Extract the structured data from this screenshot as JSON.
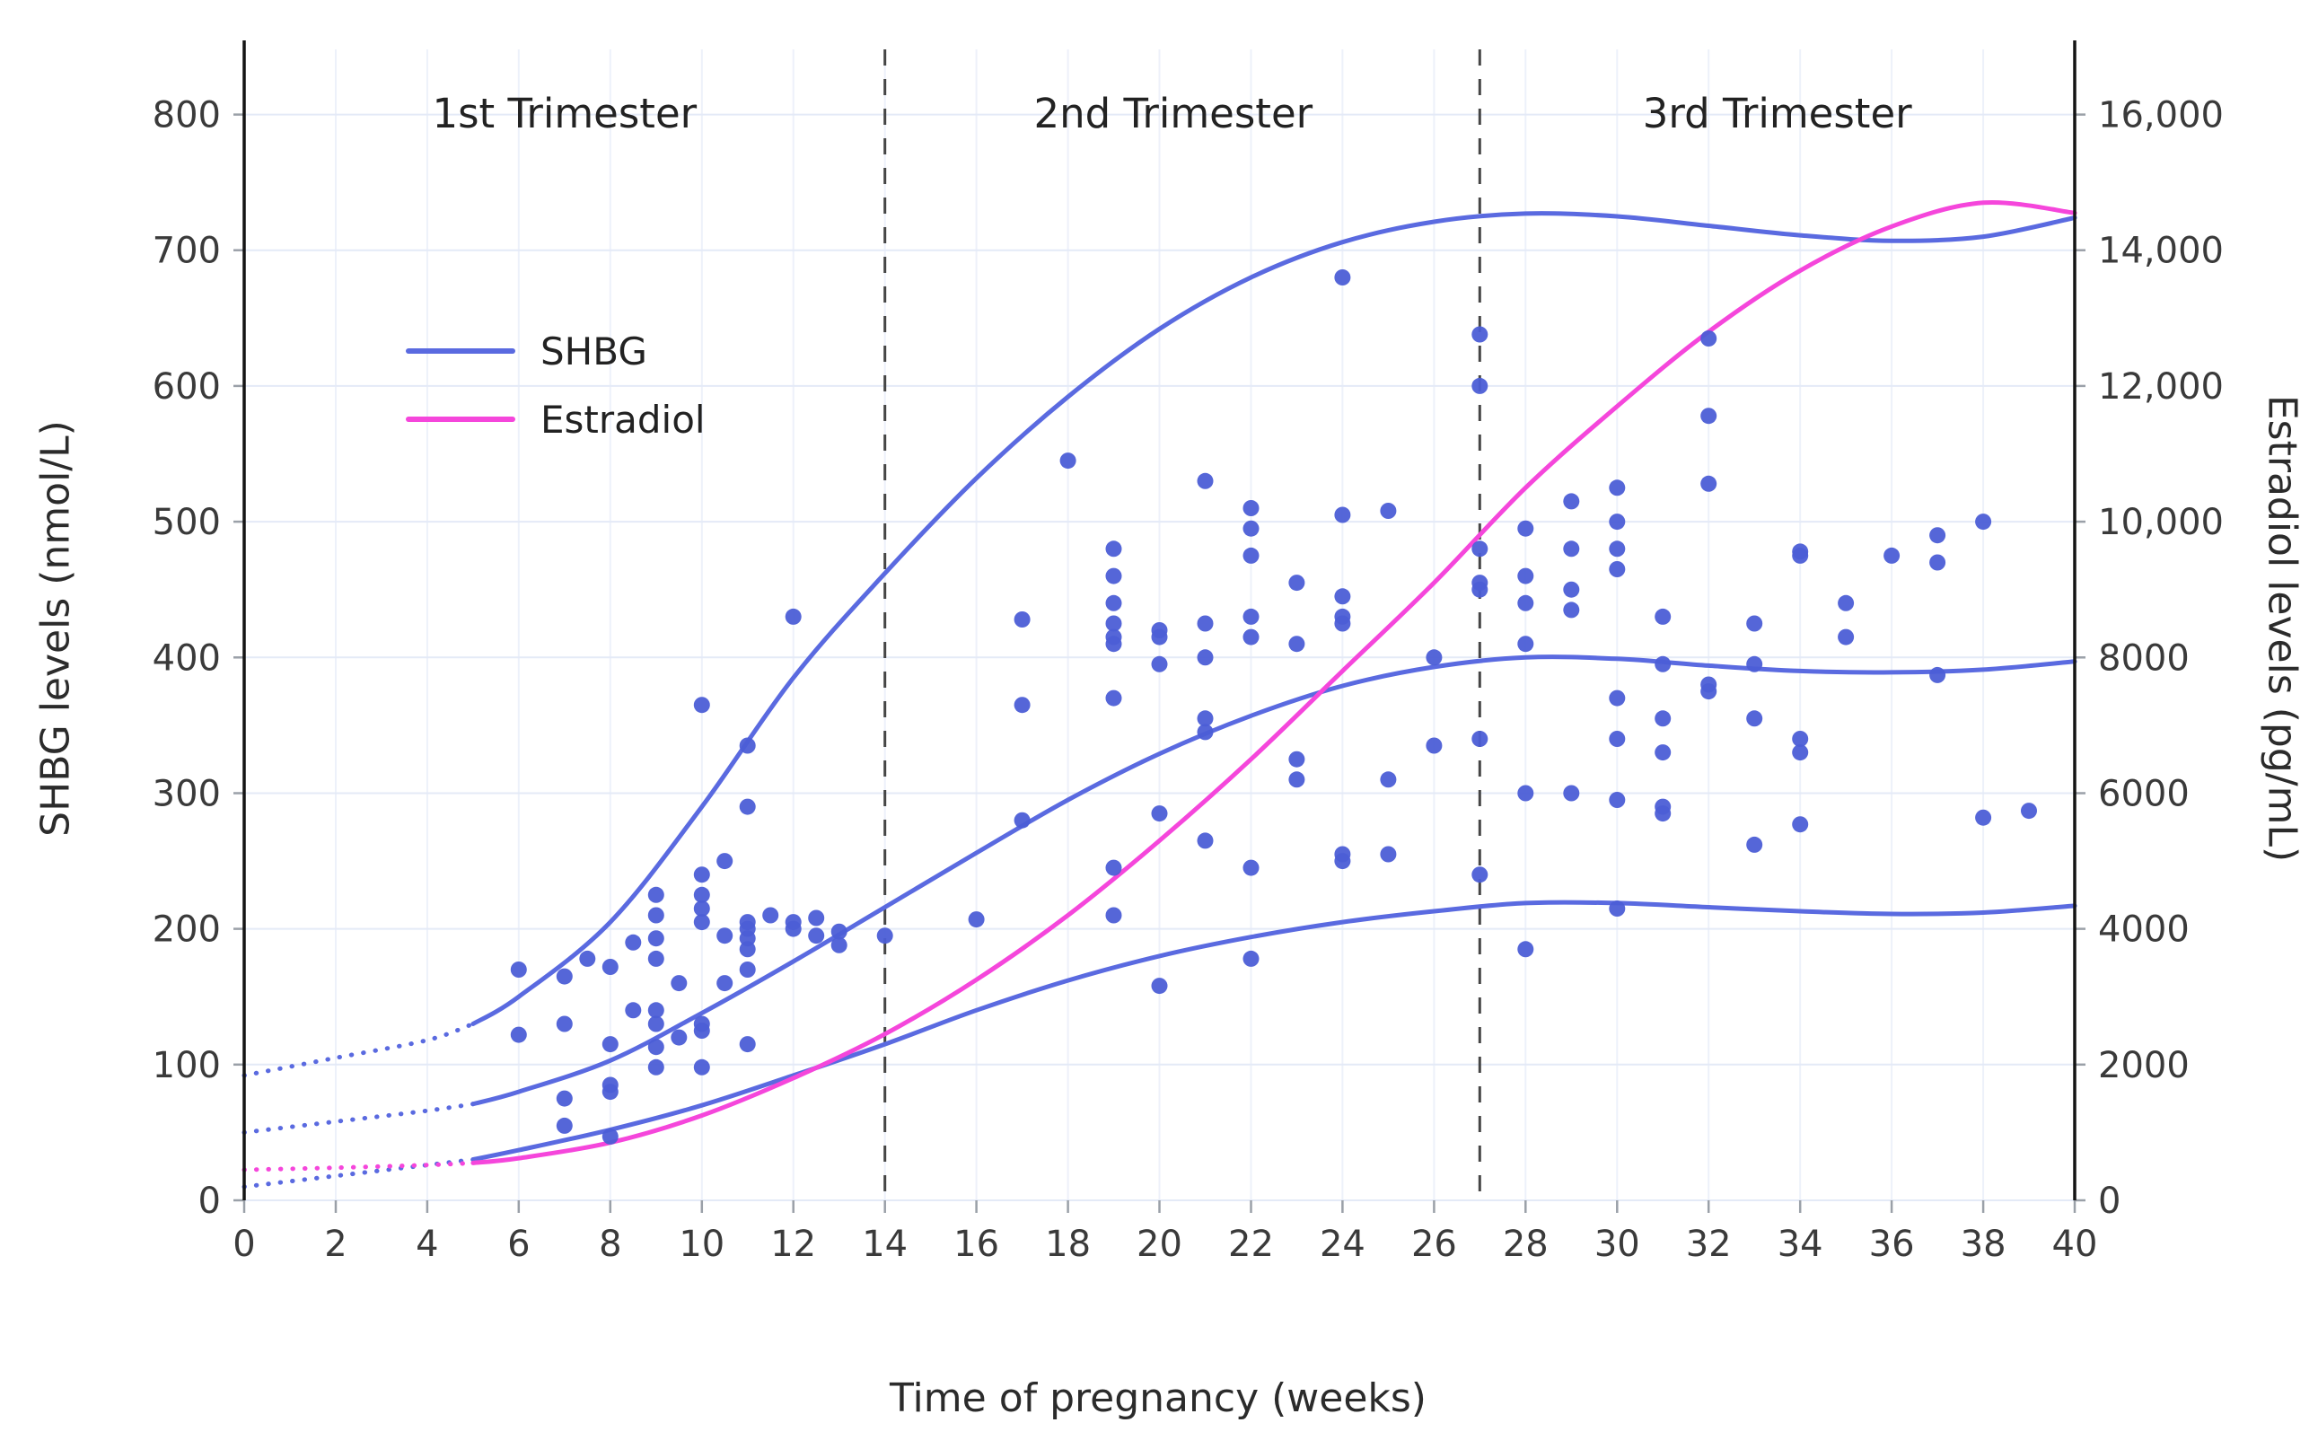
{
  "chart_data": {
    "type": "scatter",
    "title": "",
    "xlabel": "Time of pregnancy (weeks)",
    "ylabel_left": "SHBG levels (nmol/L)",
    "ylabel_right": "Estradiol levels (pg/mL)",
    "x_range": [
      0,
      40
    ],
    "left_range": [
      0,
      848
    ],
    "right_range": [
      0,
      16960
    ],
    "x_ticks": [
      0,
      2,
      4,
      6,
      8,
      10,
      12,
      14,
      16,
      18,
      20,
      22,
      24,
      26,
      28,
      30,
      32,
      34,
      36,
      38,
      40
    ],
    "left_ticks": [
      0,
      100,
      200,
      300,
      400,
      500,
      600,
      700,
      800
    ],
    "left_tick_labels": [
      "0",
      "100",
      "200",
      "300",
      "400",
      "500",
      "600",
      "700",
      "800"
    ],
    "right_ticks": [
      0,
      2000,
      4000,
      6000,
      8000,
      10000,
      12000,
      14000,
      16000
    ],
    "right_tick_labels": [
      "0",
      "2000",
      "4000",
      "6000",
      "8000",
      "10,000",
      "12,000",
      "14,000",
      "16,000"
    ],
    "grid": true,
    "trimester_dividers": [
      14,
      27
    ],
    "annotations": [
      "1st Trimester",
      "2nd Trimester",
      "3rd Trimester"
    ],
    "annotation_x": [
      7,
      20.3,
      33.5
    ],
    "legend": [
      {
        "label": "SHBG",
        "color": "#5A6AE0"
      },
      {
        "label": "Estradiol",
        "color": "#F546DB"
      }
    ],
    "colors": {
      "shbg_line": "#5A6AE0",
      "shbg_dot": "#4C5ED6",
      "estradiol_line": "#F546DB",
      "grid_h": "#E4EAF7",
      "grid_v": "#EDF1FA",
      "divider": "#454545",
      "edge": "#141414",
      "tick": "#9AA0A8",
      "tick_text": "#3A3A3A"
    },
    "series": [
      {
        "name": "SHBG upper curve",
        "axis": "left",
        "color": "#5A6AE0",
        "dashed_until": 5,
        "x": [
          0,
          2,
          4,
          5,
          6,
          8,
          10,
          12,
          14,
          16,
          18,
          20,
          22,
          24,
          26,
          28,
          30,
          32,
          34,
          36,
          38,
          40
        ],
        "y": [
          92,
          105,
          118,
          130,
          150,
          205,
          290,
          385,
          462,
          532,
          592,
          642,
          680,
          706,
          721,
          727,
          725,
          718,
          711,
          707,
          710,
          724
        ]
      },
      {
        "name": "SHBG median curve",
        "axis": "left",
        "color": "#5A6AE0",
        "dashed_until": 5,
        "x": [
          0,
          2,
          4,
          5,
          6,
          8,
          10,
          12,
          14,
          16,
          18,
          20,
          22,
          24,
          26,
          28,
          30,
          32,
          34,
          36,
          38,
          40
        ],
        "y": [
          50,
          58,
          66,
          71,
          80,
          103,
          138,
          176,
          216,
          256,
          295,
          329,
          357,
          379,
          393,
          400,
          399,
          394,
          390,
          389,
          391,
          397
        ]
      },
      {
        "name": "SHBG lower curve",
        "axis": "left",
        "color": "#5A6AE0",
        "dashed_until": 5,
        "x": [
          0,
          2,
          4,
          5,
          6,
          8,
          10,
          12,
          14,
          16,
          18,
          20,
          22,
          24,
          26,
          28,
          30,
          32,
          34,
          36,
          38,
          40
        ],
        "y": [
          10,
          18,
          26,
          30,
          37,
          52,
          70,
          92,
          115,
          140,
          162,
          180,
          194,
          205,
          213,
          219,
          219,
          216,
          213,
          211,
          212,
          217
        ]
      },
      {
        "name": "Estradiol curve",
        "axis": "right",
        "color": "#F546DB",
        "dashed_until": 5,
        "x": [
          0,
          2,
          4,
          5,
          6,
          8,
          10,
          12,
          14,
          16,
          18,
          20,
          22,
          24,
          26,
          28,
          30,
          32,
          34,
          36,
          38,
          40
        ],
        "y": [
          450,
          480,
          520,
          550,
          620,
          850,
          1250,
          1800,
          2450,
          3250,
          4200,
          5300,
          6500,
          7800,
          9100,
          10500,
          11700,
          12800,
          13700,
          14350,
          14700,
          14550
        ]
      }
    ],
    "scatter": {
      "name": "SHBG observations",
      "axis": "left",
      "color": "#4C5ED6",
      "points": [
        [
          6,
          170
        ],
        [
          6,
          122
        ],
        [
          7,
          165
        ],
        [
          7,
          130
        ],
        [
          7,
          75
        ],
        [
          7,
          55
        ],
        [
          7.5,
          178
        ],
        [
          8,
          172
        ],
        [
          8,
          115
        ],
        [
          8,
          85
        ],
        [
          8,
          80
        ],
        [
          8,
          47
        ],
        [
          8.5,
          190
        ],
        [
          8.5,
          140
        ],
        [
          9,
          225
        ],
        [
          9,
          210
        ],
        [
          9,
          193
        ],
        [
          9,
          178
        ],
        [
          9,
          140
        ],
        [
          9,
          130
        ],
        [
          9,
          113
        ],
        [
          9,
          98
        ],
        [
          9.5,
          160
        ],
        [
          9.5,
          120
        ],
        [
          10,
          365
        ],
        [
          10,
          240
        ],
        [
          10,
          225
        ],
        [
          10,
          215
        ],
        [
          10,
          205
        ],
        [
          10,
          130
        ],
        [
          10,
          125
        ],
        [
          10,
          98
        ],
        [
          10.5,
          250
        ],
        [
          10.5,
          195
        ],
        [
          10.5,
          160
        ],
        [
          11,
          335
        ],
        [
          11,
          290
        ],
        [
          11,
          205
        ],
        [
          11,
          200
        ],
        [
          11,
          193
        ],
        [
          11,
          185
        ],
        [
          11,
          170
        ],
        [
          11,
          115
        ],
        [
          11.5,
          210
        ],
        [
          12,
          430
        ],
        [
          12,
          205
        ],
        [
          12,
          200
        ],
        [
          12.5,
          208
        ],
        [
          12.5,
          195
        ],
        [
          13,
          198
        ],
        [
          13,
          188
        ],
        [
          14,
          195
        ],
        [
          16,
          207
        ],
        [
          17,
          428
        ],
        [
          17,
          365
        ],
        [
          17,
          280
        ],
        [
          18,
          545
        ],
        [
          19,
          480
        ],
        [
          19,
          460
        ],
        [
          19,
          440
        ],
        [
          19,
          425
        ],
        [
          19,
          415
        ],
        [
          19,
          410
        ],
        [
          19,
          370
        ],
        [
          19,
          245
        ],
        [
          19,
          210
        ],
        [
          20,
          420
        ],
        [
          20,
          415
        ],
        [
          20,
          395
        ],
        [
          20,
          285
        ],
        [
          20,
          158
        ],
        [
          21,
          530
        ],
        [
          21,
          425
        ],
        [
          21,
          400
        ],
        [
          21,
          355
        ],
        [
          21,
          345
        ],
        [
          21,
          265
        ],
        [
          22,
          510
        ],
        [
          22,
          495
        ],
        [
          22,
          475
        ],
        [
          22,
          430
        ],
        [
          22,
          415
        ],
        [
          22,
          245
        ],
        [
          22,
          178
        ],
        [
          23,
          455
        ],
        [
          23,
          410
        ],
        [
          23,
          325
        ],
        [
          23,
          310
        ],
        [
          24,
          680
        ],
        [
          24,
          505
        ],
        [
          24,
          445
        ],
        [
          24,
          430
        ],
        [
          24,
          425
        ],
        [
          24,
          255
        ],
        [
          24,
          250
        ],
        [
          25,
          508
        ],
        [
          25,
          310
        ],
        [
          25,
          255
        ],
        [
          26,
          400
        ],
        [
          26,
          335
        ],
        [
          27,
          638
        ],
        [
          27,
          600
        ],
        [
          27,
          480
        ],
        [
          27,
          455
        ],
        [
          27,
          450
        ],
        [
          27,
          340
        ],
        [
          27,
          240
        ],
        [
          28,
          495
        ],
        [
          28,
          460
        ],
        [
          28,
          440
        ],
        [
          28,
          410
        ],
        [
          28,
          300
        ],
        [
          28,
          185
        ],
        [
          29,
          515
        ],
        [
          29,
          480
        ],
        [
          29,
          450
        ],
        [
          29,
          435
        ],
        [
          29,
          300
        ],
        [
          30,
          525
        ],
        [
          30,
          500
        ],
        [
          30,
          480
        ],
        [
          30,
          465
        ],
        [
          30,
          370
        ],
        [
          30,
          340
        ],
        [
          30,
          295
        ],
        [
          30,
          215
        ],
        [
          31,
          430
        ],
        [
          31,
          395
        ],
        [
          31,
          355
        ],
        [
          31,
          330
        ],
        [
          31,
          290
        ],
        [
          31,
          285
        ],
        [
          32,
          635
        ],
        [
          32,
          578
        ],
        [
          32,
          528
        ],
        [
          32,
          380
        ],
        [
          32,
          375
        ],
        [
          33,
          425
        ],
        [
          33,
          395
        ],
        [
          33,
          355
        ],
        [
          33,
          262
        ],
        [
          34,
          478
        ],
        [
          34,
          475
        ],
        [
          34,
          340
        ],
        [
          34,
          330
        ],
        [
          34,
          277
        ],
        [
          35,
          440
        ],
        [
          35,
          415
        ],
        [
          36,
          475
        ],
        [
          37,
          490
        ],
        [
          37,
          470
        ],
        [
          37,
          387
        ],
        [
          38,
          500
        ],
        [
          38,
          282
        ],
        [
          39,
          287
        ]
      ]
    }
  }
}
